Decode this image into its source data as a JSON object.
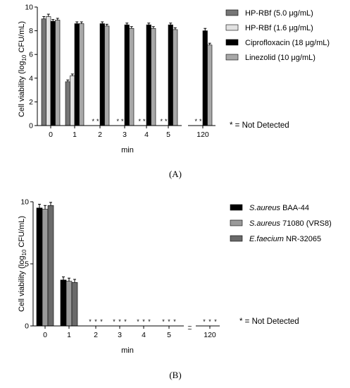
{
  "chart_data": [
    {
      "type": "bar",
      "panel_label": "(A)",
      "categories": [
        "0",
        "1",
        "2",
        "3",
        "4",
        "5",
        "120"
      ],
      "ylabel": "Cell viability (log10 CFU/mL)",
      "ylabel_parts": {
        "pre": "Cell viability (log",
        "sub": "10",
        "post": " CFU/mL)"
      },
      "xlabel": "min",
      "ylim": [
        0,
        10
      ],
      "yticks": [
        0,
        2,
        4,
        6,
        8,
        10
      ],
      "legend_position": "top-right",
      "series": [
        {
          "name": "HP-RBf (5.0 μg/mL)",
          "color": "#767676",
          "values": [
            9.0,
            3.7,
            0,
            0,
            0,
            0,
            0
          ],
          "errors": [
            0.2,
            0.15,
            0,
            0,
            0,
            0,
            0
          ],
          "not_detected": [
            false,
            false,
            true,
            true,
            true,
            true,
            true
          ]
        },
        {
          "name": "HP-RBf (1.6 μg/mL)",
          "color": "#e2e2e2",
          "values": [
            9.2,
            4.2,
            0,
            0,
            0,
            0,
            0
          ],
          "errors": [
            0.2,
            0.15,
            0,
            0,
            0,
            0,
            0
          ],
          "not_detected": [
            false,
            false,
            true,
            true,
            true,
            true,
            true
          ]
        },
        {
          "name": "Ciprofloxacin (18 μg/mL)",
          "color": "#000000",
          "values": [
            8.8,
            8.6,
            8.6,
            8.5,
            8.5,
            8.5,
            8.0
          ],
          "errors": [
            0.15,
            0.15,
            0.15,
            0.15,
            0.15,
            0.15,
            0.2
          ],
          "not_detected": [
            false,
            false,
            false,
            false,
            false,
            false,
            false
          ]
        },
        {
          "name": "Linezolid (10 μg/mL)",
          "color": "#a8a8a8",
          "values": [
            8.9,
            8.6,
            8.4,
            8.2,
            8.2,
            8.1,
            6.8
          ],
          "errors": [
            0.15,
            0.15,
            0.15,
            0.15,
            0.15,
            0.15,
            0.15
          ],
          "not_detected": [
            false,
            false,
            false,
            false,
            false,
            false,
            false
          ]
        }
      ],
      "annotation": "* = Not Detected",
      "star_glyph": "*"
    },
    {
      "type": "bar",
      "panel_label": "(B)",
      "categories": [
        "0",
        "1",
        "2",
        "3",
        "4",
        "5",
        "120"
      ],
      "ylabel": "Cell viability (log10 CFU/mL)",
      "ylabel_parts": {
        "pre": "Cell viability (log",
        "sub": "10",
        "post": " CFU/mL)"
      },
      "xlabel": "min",
      "ylim": [
        0,
        10
      ],
      "yticks": [
        0,
        5,
        10
      ],
      "axis_break": "~",
      "legend_position": "top-right",
      "series": [
        {
          "name_italic": "S.aureus",
          "name_rest": " BAA-44",
          "color": "#000000",
          "values": [
            9.5,
            3.7,
            0,
            0,
            0,
            0,
            0
          ],
          "errors": [
            0.3,
            0.25,
            0,
            0,
            0,
            0,
            0
          ],
          "not_detected": [
            false,
            false,
            true,
            true,
            true,
            true,
            true
          ]
        },
        {
          "name_italic": "S.aureus",
          "name_rest": " 71080 (VRS8)",
          "color": "#9a9a9a",
          "values": [
            9.4,
            3.6,
            0,
            0,
            0,
            0,
            0
          ],
          "errors": [
            0.3,
            0.25,
            0,
            0,
            0,
            0,
            0
          ],
          "not_detected": [
            false,
            false,
            true,
            true,
            true,
            true,
            true
          ]
        },
        {
          "name_italic": "E.faecium",
          "name_rest": " NR-32065",
          "color": "#6a6a6a",
          "values": [
            9.7,
            3.5,
            0,
            0,
            0,
            0,
            0
          ],
          "errors": [
            0.25,
            0.25,
            0,
            0,
            0,
            0,
            0
          ],
          "not_detected": [
            false,
            false,
            true,
            true,
            true,
            true,
            true
          ]
        }
      ],
      "annotation": "* = Not Detected",
      "star_glyph": "*"
    }
  ]
}
